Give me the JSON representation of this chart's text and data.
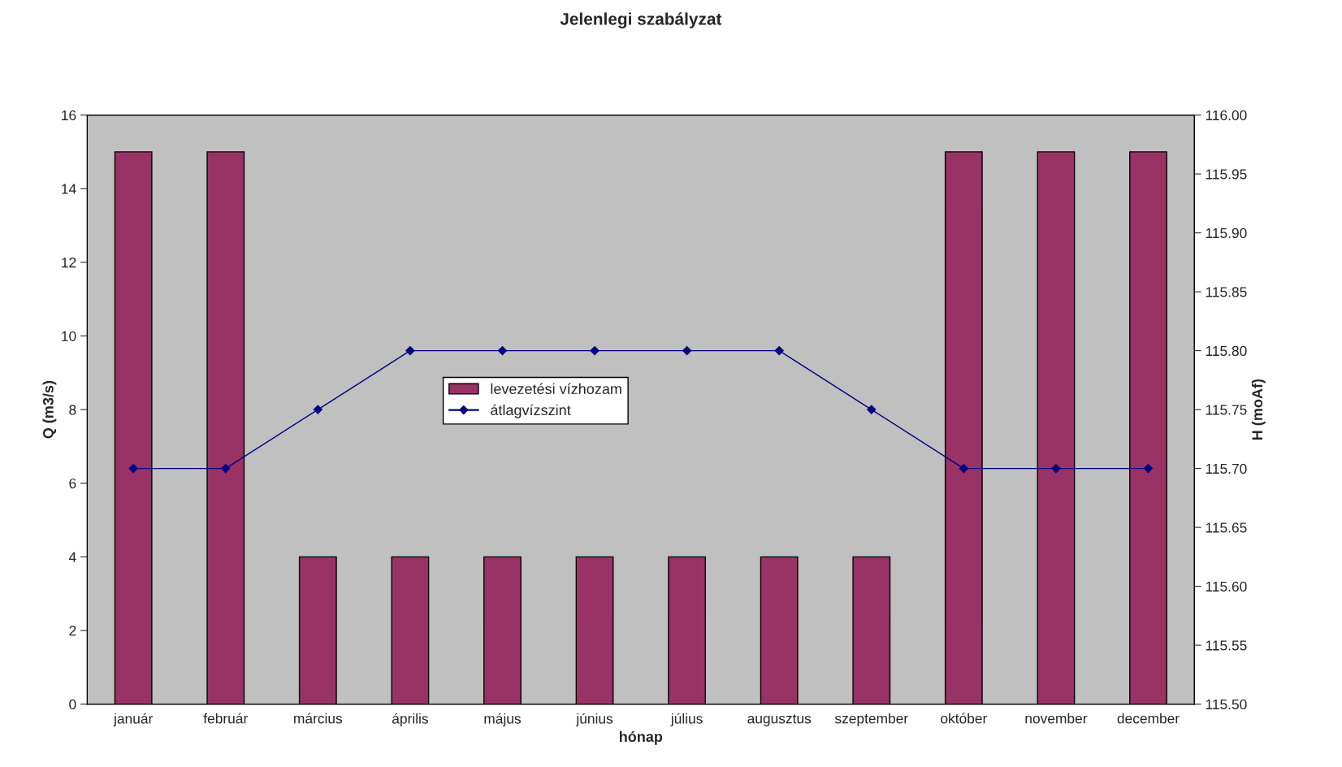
{
  "chart_data": {
    "type": "bar",
    "title": "Jelenlegi szabályzat",
    "xlabel": "hónap",
    "ylabel": "Q (m3/s)",
    "y2label": "H (moAf)",
    "categories": [
      "január",
      "február",
      "március",
      "április",
      "május",
      "június",
      "július",
      "augusztus",
      "szeptember",
      "október",
      "november",
      "december"
    ],
    "series": [
      {
        "name": "levezetési vízhozam",
        "color": "#993366",
        "values": [
          15,
          15,
          4,
          4,
          4,
          4,
          4,
          4,
          4,
          15,
          15,
          15
        ]
      },
      {
        "name": "átlagvízszint",
        "type": "line",
        "axis": "y2",
        "color": "#000080",
        "marker": "diamond",
        "values": [
          115.7,
          115.7,
          115.75,
          115.8,
          115.8,
          115.8,
          115.8,
          115.8,
          115.75,
          115.7,
          115.7,
          115.7
        ]
      }
    ],
    "ylim": [
      0,
      16
    ],
    "yticks": [
      0,
      2,
      4,
      6,
      8,
      10,
      12,
      14,
      16
    ],
    "y2lim": [
      115.5,
      116.0
    ],
    "y2ticks": [
      {
        "value": 115.5,
        "label": "115.50"
      },
      {
        "value": 115.55,
        "label": "115.55"
      },
      {
        "value": 115.6,
        "label": "115.60"
      },
      {
        "value": 115.65,
        "label": "115.65"
      },
      {
        "value": 115.7,
        "label": "115.70"
      },
      {
        "value": 115.75,
        "label": "115.75"
      },
      {
        "value": 115.8,
        "label": "115.80"
      },
      {
        "value": 115.85,
        "label": "115.85"
      },
      {
        "value": 115.9,
        "label": "115.90"
      },
      {
        "value": 115.95,
        "label": "115.95"
      },
      {
        "value": 116.0,
        "label": "116.00"
      }
    ],
    "grid": false,
    "legend": "center"
  }
}
